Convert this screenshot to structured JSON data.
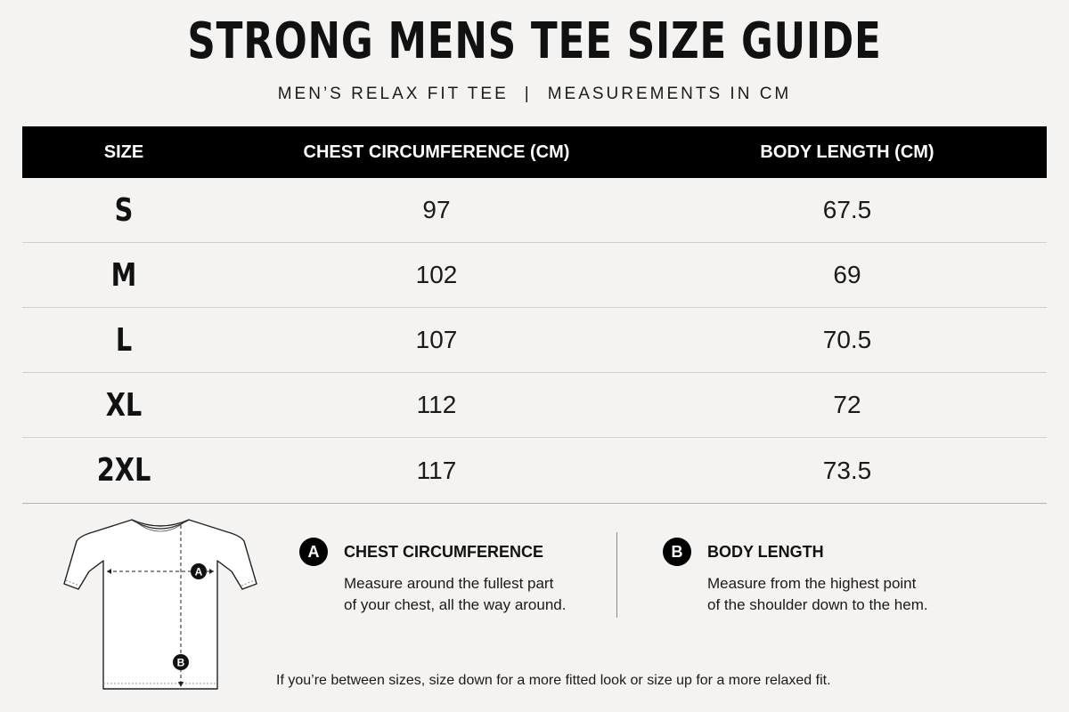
{
  "header": {
    "title": "STRONG MENS TEE SIZE GUIDE",
    "subtitle_left": "MEN’S RELAX FIT TEE",
    "subtitle_sep": "|",
    "subtitle_right": "MEASUREMENTS IN CM"
  },
  "table": {
    "columns": [
      "SIZE",
      "CHEST CIRCUMFERENCE (CM)",
      "BODY LENGTH (CM)"
    ],
    "rows": [
      {
        "size": "S",
        "chest": "97",
        "length": "67.5"
      },
      {
        "size": "M",
        "chest": "102",
        "length": "69"
      },
      {
        "size": "L",
        "chest": "107",
        "length": "70.5"
      },
      {
        "size": "XL",
        "chest": "112",
        "length": "72"
      },
      {
        "size": "2XL",
        "chest": "117",
        "length": "73.5"
      }
    ]
  },
  "diagram": {
    "marker_a": "A",
    "marker_b": "B",
    "icon": "tshirt-outline-icon"
  },
  "measures": {
    "a": {
      "badge": "A",
      "heading": "CHEST CIRCUMFERENCE",
      "line1": "Measure around the fullest part",
      "line2": "of your chest, all the way around."
    },
    "b": {
      "badge": "B",
      "heading": "BODY LENGTH",
      "line1": "Measure from the highest point",
      "line2": "of the shoulder down to the hem."
    }
  },
  "footnote": "If you’re between sizes, size down for a more fitted look or size up for a more relaxed fit.",
  "colors": {
    "background": "#f4f3f1",
    "header_bar": "#000000",
    "text": "#111111"
  }
}
